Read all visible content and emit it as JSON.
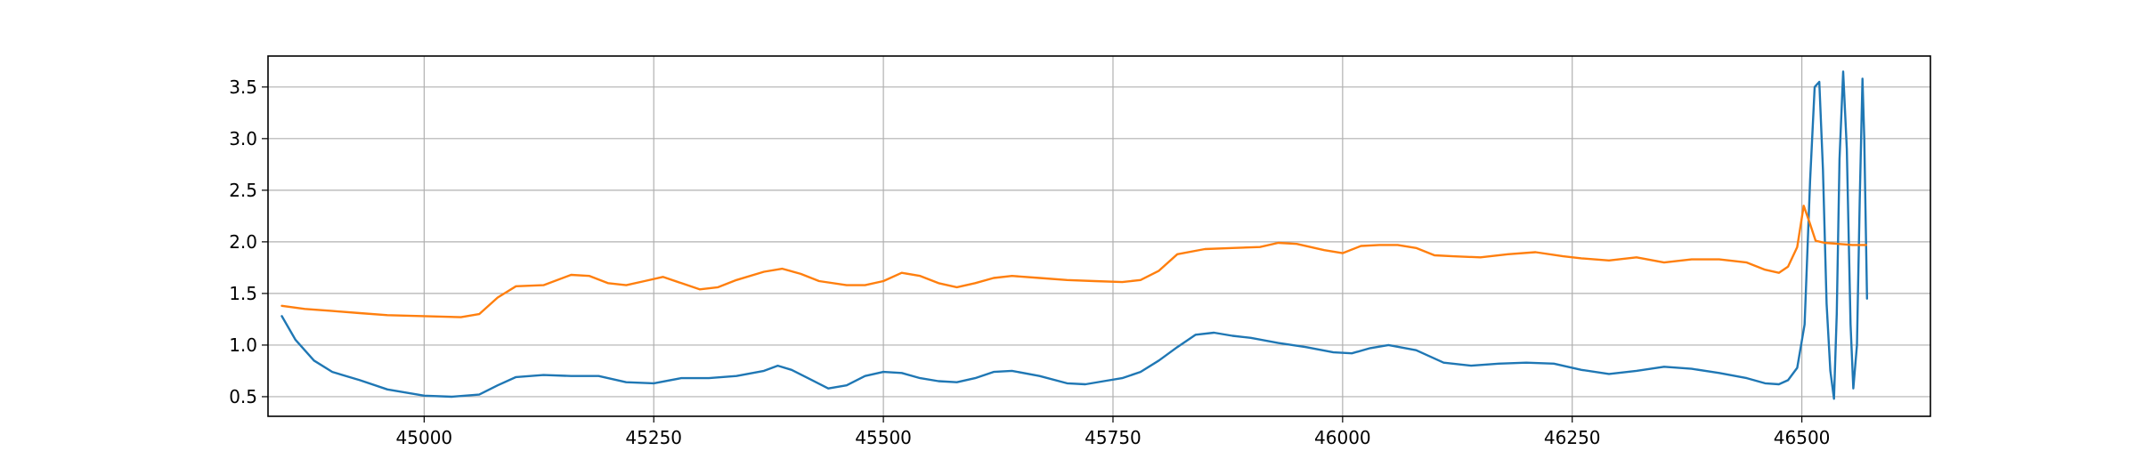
{
  "chart_data": {
    "type": "line",
    "title": "",
    "xlabel": "",
    "ylabel": "",
    "xlim": [
      44830,
      46640
    ],
    "ylim": [
      0.31,
      3.8
    ],
    "grid": true,
    "x_ticks": [
      45000,
      45250,
      45500,
      45750,
      46000,
      46250,
      46500
    ],
    "y_ticks": [
      0.5,
      1.0,
      1.5,
      2.0,
      2.5,
      3.0,
      3.5
    ],
    "x_tick_labels": [
      "45000",
      "45250",
      "45500",
      "45750",
      "46000",
      "46250",
      "46500"
    ],
    "y_tick_labels": [
      "0.5",
      "1.0",
      "1.5",
      "2.0",
      "2.5",
      "3.0",
      "3.5"
    ],
    "colors": {
      "series_1": "#1f77b4",
      "series_2": "#ff7f0e",
      "grid": "#b0b0b0"
    },
    "series": [
      {
        "color": "#1f77b4",
        "x": [
          44845,
          44860,
          44880,
          44900,
          44930,
          44960,
          45000,
          45030,
          45060,
          45080,
          45100,
          45130,
          45160,
          45190,
          45220,
          45250,
          45280,
          45310,
          45340,
          45370,
          45385,
          45400,
          45420,
          45440,
          45460,
          45480,
          45500,
          45520,
          45540,
          45560,
          45580,
          45600,
          45620,
          45640,
          45670,
          45700,
          45720,
          45740,
          45760,
          45780,
          45800,
          45820,
          45840,
          45860,
          45880,
          45900,
          45930,
          45960,
          45990,
          46010,
          46030,
          46050,
          46080,
          46110,
          46140,
          46170,
          46200,
          46230,
          46260,
          46290,
          46320,
          46350,
          46380,
          46410,
          46440,
          46460,
          46475,
          46485,
          46495,
          46503,
          46509,
          46514,
          46519,
          46523,
          46527,
          46531,
          46535,
          46538,
          46541,
          46545,
          46549,
          46553,
          46556,
          46560,
          46563,
          46566,
          46568,
          46571
        ],
        "y": [
          1.28,
          1.05,
          0.85,
          0.74,
          0.66,
          0.57,
          0.51,
          0.5,
          0.52,
          0.61,
          0.69,
          0.71,
          0.7,
          0.7,
          0.64,
          0.63,
          0.68,
          0.68,
          0.7,
          0.75,
          0.8,
          0.76,
          0.67,
          0.58,
          0.61,
          0.7,
          0.74,
          0.73,
          0.68,
          0.65,
          0.64,
          0.68,
          0.74,
          0.75,
          0.7,
          0.63,
          0.62,
          0.65,
          0.68,
          0.74,
          0.85,
          0.98,
          1.1,
          1.12,
          1.09,
          1.07,
          1.02,
          0.98,
          0.93,
          0.92,
          0.97,
          1.0,
          0.95,
          0.83,
          0.8,
          0.82,
          0.83,
          0.82,
          0.76,
          0.72,
          0.75,
          0.79,
          0.77,
          0.73,
          0.68,
          0.63,
          0.62,
          0.66,
          0.78,
          1.2,
          2.6,
          3.5,
          3.55,
          2.7,
          1.4,
          0.75,
          0.48,
          1.3,
          2.8,
          3.65,
          2.9,
          1.2,
          0.58,
          1.0,
          2.4,
          3.58,
          3.0,
          1.45
        ]
      },
      {
        "color": "#ff7f0e",
        "x": [
          44845,
          44870,
          44900,
          44930,
          44960,
          45000,
          45040,
          45060,
          45080,
          45100,
          45130,
          45160,
          45180,
          45200,
          45220,
          45240,
          45260,
          45280,
          45300,
          45320,
          45340,
          45370,
          45390,
          45410,
          45430,
          45460,
          45480,
          45500,
          45520,
          45540,
          45560,
          45580,
          45600,
          45620,
          45640,
          45670,
          45700,
          45730,
          45760,
          45780,
          45800,
          45820,
          45850,
          45880,
          45910,
          45930,
          45950,
          45980,
          46000,
          46020,
          46040,
          46060,
          46080,
          46100,
          46120,
          46150,
          46180,
          46210,
          46240,
          46260,
          46290,
          46320,
          46350,
          46380,
          46410,
          46440,
          46460,
          46475,
          46485,
          46495,
          46502,
          46508,
          46515,
          46525,
          46540,
          46555,
          46570
        ],
        "y": [
          1.38,
          1.35,
          1.33,
          1.31,
          1.29,
          1.28,
          1.27,
          1.3,
          1.46,
          1.57,
          1.58,
          1.68,
          1.67,
          1.6,
          1.58,
          1.62,
          1.66,
          1.6,
          1.54,
          1.56,
          1.63,
          1.71,
          1.74,
          1.69,
          1.62,
          1.58,
          1.58,
          1.62,
          1.7,
          1.67,
          1.6,
          1.56,
          1.6,
          1.65,
          1.67,
          1.65,
          1.63,
          1.62,
          1.61,
          1.63,
          1.72,
          1.88,
          1.93,
          1.94,
          1.95,
          1.99,
          1.98,
          1.92,
          1.89,
          1.96,
          1.97,
          1.97,
          1.94,
          1.87,
          1.86,
          1.85,
          1.88,
          1.9,
          1.86,
          1.84,
          1.82,
          1.85,
          1.8,
          1.83,
          1.83,
          1.8,
          1.73,
          1.7,
          1.76,
          1.95,
          2.35,
          2.2,
          2.01,
          1.99,
          1.98,
          1.97,
          1.97
        ]
      }
    ]
  }
}
